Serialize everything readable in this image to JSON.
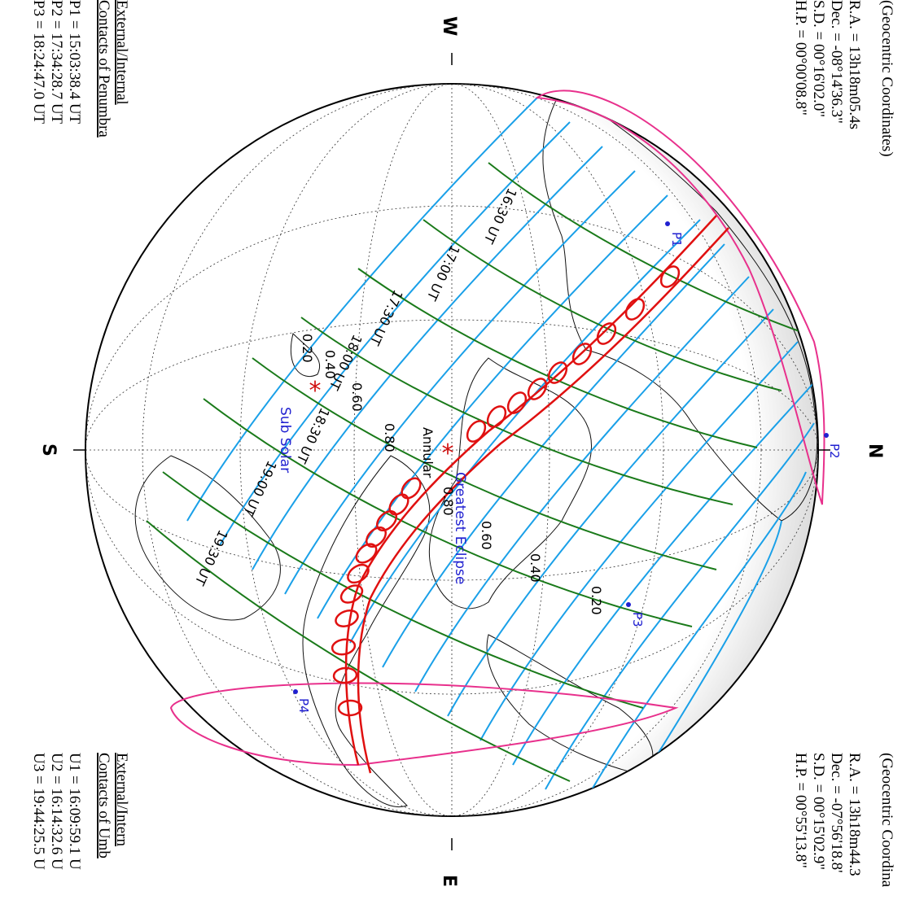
{
  "compass": {
    "west": "W",
    "south": "S",
    "north": "N",
    "east": "E"
  },
  "sun_box": {
    "heading": "(Geocentric Coordinates)",
    "ra": "R.A. = 13h18m05.4s",
    "dec": "Dec. = -08°14'36.3\"",
    "sd": "S.D. = 00°16'02.0\"",
    "hp": "H.P. =  00°00'08.8\""
  },
  "moon_box": {
    "heading": "(Geocentric Coordina",
    "ra": "R.A. = 13h18m44.3",
    "dec": "Dec. = -07°56'18.8'",
    "sd": "S.D. =  00°15'02.9\"",
    "hp": "H.P. =  00°55'13.8\""
  },
  "penumbra_box": {
    "title1": "External/Internal",
    "title2": "Contacts of Penumbra",
    "p1": "P1 = 15:03:38.4 UT",
    "p2": "P2 = 17:34:28.7 UT",
    "p3": "P3 = 18:24:47.0 UT"
  },
  "umbra_box": {
    "title1": "External/Intern",
    "title2": "Contacts of Umb",
    "u1": "U1 = 16:09:59.1 U",
    "u2": "U2 = 16:14:32.6 U",
    "u3": "U3 = 19:44:25.5 U"
  },
  "time_labels": [
    "16:30 UT",
    "17:00 UT",
    "17:30 UT",
    "18:00 UT",
    "18:30 UT",
    "19:00 UT",
    "19:30 UT"
  ],
  "magnitude_labels": [
    "0.20",
    "0.40",
    "0.60",
    "0.80",
    "0.80",
    "0.60",
    "0.40",
    "0.20"
  ],
  "contact_points": [
    "P1",
    "P2",
    "P3",
    "P4"
  ],
  "markers": {
    "greatest_eclipse": "Greatest Eclipse",
    "sub_solar": "Sub Solar",
    "annular": "Annular"
  },
  "colors": {
    "penumbra_limit": "#e8308c",
    "magnitude_iso": "#1aa0e8",
    "time_iso": "#1a7a1a",
    "central_path": "#e01010",
    "marker_text": "#2020d0",
    "globe_outline": "#000000"
  }
}
